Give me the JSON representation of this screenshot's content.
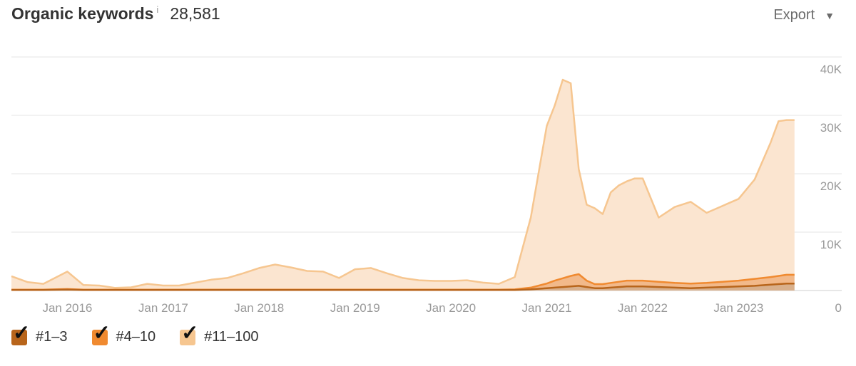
{
  "header": {
    "title": "Organic keywords",
    "info_glyph": "i",
    "total": "28,581",
    "export_label": "Export",
    "export_caret": "▼"
  },
  "legend": {
    "check_glyph": "✓",
    "items": [
      {
        "label": "#1–3",
        "color": "#b8651b"
      },
      {
        "label": "#4–10",
        "color": "#f08a30"
      },
      {
        "label": "#11–100",
        "color": "#f6c690"
      }
    ]
  },
  "chart_data": {
    "type": "area",
    "stacked": true,
    "x_ticks": [
      "Jan 2016",
      "Jan 2017",
      "Jan 2018",
      "Jan 2019",
      "Jan 2020",
      "Jan 2021",
      "Jan 2022",
      "Jan 2023"
    ],
    "y_ticks": [
      "0",
      "10K",
      "20K",
      "30K",
      "40K"
    ],
    "ylim": [
      0,
      40000
    ],
    "xlim": [
      "2015-06",
      "2023-09"
    ],
    "grid": true,
    "legend_position": "bottom-left",
    "x": [
      "2015-06",
      "2015-08",
      "2015-10",
      "2016-01",
      "2016-03",
      "2016-05",
      "2016-07",
      "2016-09",
      "2016-11",
      "2017-01",
      "2017-03",
      "2017-05",
      "2017-07",
      "2017-09",
      "2017-11",
      "2018-01",
      "2018-03",
      "2018-05",
      "2018-07",
      "2018-09",
      "2018-11",
      "2019-01",
      "2019-03",
      "2019-05",
      "2019-07",
      "2019-09",
      "2019-11",
      "2020-01",
      "2020-03",
      "2020-05",
      "2020-07",
      "2020-09",
      "2020-11",
      "2021-01",
      "2021-02",
      "2021-03",
      "2021-04",
      "2021-05",
      "2021-06",
      "2021-07",
      "2021-08",
      "2021-09",
      "2021-10",
      "2021-11",
      "2021-12",
      "2022-01",
      "2022-03",
      "2022-05",
      "2022-07",
      "2022-09",
      "2022-11",
      "2023-01",
      "2023-03",
      "2023-05",
      "2023-06",
      "2023-07",
      "2023-08"
    ],
    "series": [
      {
        "name": "#1–3",
        "color": "#b8651b",
        "values": [
          100,
          100,
          100,
          150,
          100,
          100,
          100,
          100,
          100,
          100,
          100,
          100,
          100,
          100,
          100,
          100,
          100,
          100,
          100,
          100,
          100,
          100,
          100,
          100,
          100,
          100,
          100,
          100,
          100,
          100,
          100,
          100,
          200,
          400,
          500,
          600,
          700,
          800,
          600,
          400,
          400,
          500,
          600,
          700,
          700,
          700,
          600,
          500,
          400,
          500,
          600,
          700,
          800,
          1000,
          1100,
          1200,
          1200
        ]
      },
      {
        "name": "#4–10",
        "color": "#f08a30",
        "values": [
          50,
          50,
          50,
          100,
          50,
          50,
          50,
          50,
          50,
          50,
          50,
          50,
          50,
          50,
          50,
          50,
          50,
          50,
          50,
          50,
          50,
          50,
          50,
          50,
          50,
          50,
          50,
          50,
          50,
          50,
          50,
          100,
          300,
          800,
          1200,
          1500,
          1800,
          2000,
          1100,
          700,
          700,
          800,
          900,
          1000,
          1000,
          1000,
          900,
          800,
          800,
          800,
          900,
          1000,
          1200,
          1300,
          1400,
          1500,
          1500
        ]
      },
      {
        "name": "#11–100",
        "color": "#f6c690",
        "values": [
          2300,
          1300,
          1000,
          3000,
          800,
          700,
          300,
          400,
          1000,
          700,
          700,
          1200,
          1700,
          2000,
          2800,
          3700,
          4300,
          3800,
          3200,
          3100,
          2000,
          3500,
          3700,
          2800,
          2000,
          1600,
          1500,
          1500,
          1600,
          1200,
          1000,
          2100,
          12000,
          27000,
          30000,
          34000,
          33000,
          18000,
          13000,
          13000,
          12000,
          15500,
          16500,
          17000,
          17500,
          17500,
          11000,
          13000,
          14000,
          12000,
          13000,
          14000,
          17000,
          23000,
          26500,
          26500,
          26500
        ]
      }
    ]
  }
}
